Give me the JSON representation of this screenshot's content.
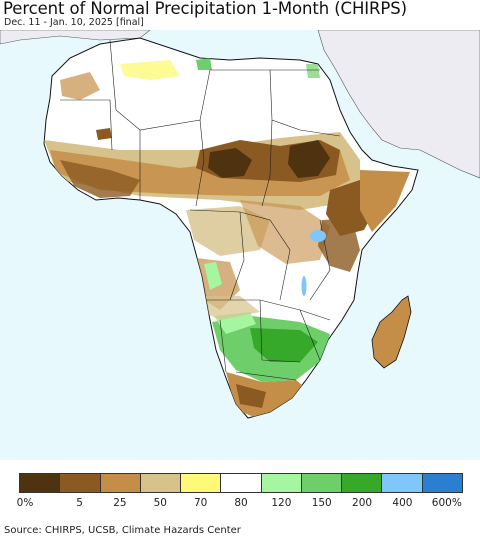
{
  "header": {
    "title": "Percent of Normal Precipitation 1-Month (CHIRPS)",
    "subtitle": "Dec. 11 - Jan. 10, 2025 [final]"
  },
  "legend": {
    "colors": [
      "#4f3210",
      "#8b5a22",
      "#c58e48",
      "#d6c28a",
      "#fdfa7a",
      "#ffffff",
      "#a6f5a0",
      "#6ecf6a",
      "#36a82a",
      "#80c6fb",
      "#2a7fd0"
    ],
    "labels": [
      "0%",
      "5",
      "25",
      "50",
      "70",
      "80",
      "120",
      "150",
      "200",
      "400",
      "600%"
    ]
  },
  "footer": {
    "source": "Source: CHIRPS, UCSB, Climate Hazards Center"
  },
  "map": {
    "ocean_color": "#e8f9fe",
    "nodata_land_color": "#ececf2",
    "africa_base_color": "#ffffff",
    "border_color": "#111111"
  }
}
